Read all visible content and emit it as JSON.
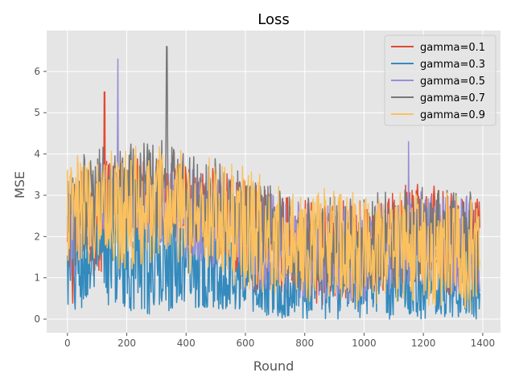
{
  "chart_data": {
    "type": "line",
    "title": "Loss",
    "xlabel": "Round",
    "ylabel": "MSE",
    "xlim": [
      -70,
      1460
    ],
    "ylim": [
      -0.33,
      6.99
    ],
    "xticks": [
      0,
      200,
      400,
      600,
      800,
      1000,
      1200,
      1400
    ],
    "yticks": [
      0,
      1,
      2,
      3,
      4,
      5,
      6
    ],
    "grid": true,
    "legend_position": "top-right",
    "x_start": 0,
    "x_end": 1390,
    "series": [
      {
        "name": "gamma=0.1",
        "color": "#e24a33",
        "points": [
          [
            0,
            1.4
          ],
          [
            50,
            2.7
          ],
          [
            100,
            2.3
          ],
          [
            125,
            5.5
          ],
          [
            150,
            2.9
          ],
          [
            200,
            2.8
          ],
          [
            250,
            3.3
          ],
          [
            300,
            2.9
          ],
          [
            350,
            2.9
          ],
          [
            400,
            2.7
          ],
          [
            450,
            2.6
          ],
          [
            500,
            2.4
          ],
          [
            550,
            2.2
          ],
          [
            600,
            2.0
          ],
          [
            650,
            1.9
          ],
          [
            700,
            1.9
          ],
          [
            750,
            1.7
          ],
          [
            800,
            1.7
          ],
          [
            850,
            1.6
          ],
          [
            900,
            1.6
          ],
          [
            950,
            1.6
          ],
          [
            1000,
            1.6
          ],
          [
            1050,
            1.7
          ],
          [
            1100,
            1.9
          ],
          [
            1150,
            2.0
          ],
          [
            1200,
            2.0
          ],
          [
            1250,
            2.0
          ],
          [
            1300,
            1.8
          ],
          [
            1350,
            1.8
          ],
          [
            1390,
            1.7
          ]
        ],
        "band": [
          [
            0,
            2.4
          ],
          [
            50,
            2.8
          ],
          [
            100,
            2.9
          ],
          [
            150,
            3.0
          ],
          [
            200,
            3.0
          ],
          [
            250,
            3.0
          ],
          [
            300,
            3.0
          ],
          [
            350,
            3.0
          ],
          [
            400,
            2.9
          ],
          [
            450,
            2.8
          ],
          [
            500,
            2.8
          ],
          [
            550,
            2.6
          ],
          [
            600,
            2.5
          ],
          [
            650,
            2.3
          ],
          [
            700,
            2.2
          ],
          [
            750,
            2.1
          ],
          [
            800,
            2.1
          ],
          [
            850,
            2.0
          ],
          [
            900,
            2.0
          ],
          [
            950,
            2.0
          ],
          [
            1000,
            2.0
          ],
          [
            1050,
            2.1
          ],
          [
            1100,
            2.3
          ],
          [
            1150,
            2.4
          ],
          [
            1200,
            2.4
          ],
          [
            1250,
            2.3
          ],
          [
            1300,
            2.2
          ],
          [
            1350,
            2.1
          ],
          [
            1390,
            2.1
          ]
        ]
      },
      {
        "name": "gamma=0.3",
        "color": "#348abd",
        "points": [
          [
            0,
            1.0
          ],
          [
            50,
            1.3
          ],
          [
            100,
            1.4
          ],
          [
            150,
            1.5
          ],
          [
            200,
            1.5
          ],
          [
            250,
            1.5
          ],
          [
            300,
            1.5
          ],
          [
            350,
            1.5
          ],
          [
            400,
            1.4
          ],
          [
            450,
            1.4
          ],
          [
            500,
            1.3
          ],
          [
            550,
            1.2
          ],
          [
            600,
            1.1
          ],
          [
            650,
            1.0
          ],
          [
            700,
            0.9
          ],
          [
            750,
            0.9
          ],
          [
            800,
            0.9
          ],
          [
            850,
            0.85
          ],
          [
            900,
            0.85
          ],
          [
            950,
            0.85
          ],
          [
            1000,
            0.9
          ],
          [
            1050,
            0.9
          ],
          [
            1100,
            0.9
          ],
          [
            1150,
            0.9
          ],
          [
            1200,
            0.9
          ],
          [
            1250,
            0.9
          ],
          [
            1300,
            0.9
          ],
          [
            1350,
            0.9
          ],
          [
            1390,
            0.9
          ]
        ],
        "band": [
          [
            0,
            1.5
          ],
          [
            50,
            1.6
          ],
          [
            100,
            1.5
          ],
          [
            150,
            1.8
          ],
          [
            200,
            1.9
          ],
          [
            250,
            2.1
          ],
          [
            300,
            2.0
          ],
          [
            350,
            1.9
          ],
          [
            400,
            1.7
          ],
          [
            450,
            1.6
          ],
          [
            500,
            1.5
          ],
          [
            550,
            1.3
          ],
          [
            600,
            1.2
          ],
          [
            650,
            1.1
          ],
          [
            700,
            1.0
          ],
          [
            750,
            1.0
          ],
          [
            800,
            1.0
          ],
          [
            850,
            0.95
          ],
          [
            900,
            0.95
          ],
          [
            950,
            0.95
          ],
          [
            1000,
            0.95
          ],
          [
            1050,
            0.95
          ],
          [
            1100,
            0.95
          ],
          [
            1150,
            1.0
          ],
          [
            1200,
            1.0
          ],
          [
            1250,
            1.0
          ],
          [
            1300,
            1.0
          ],
          [
            1350,
            1.0
          ],
          [
            1390,
            1.0
          ]
        ]
      },
      {
        "name": "gamma=0.5",
        "color": "#988ed5",
        "points": [
          [
            0,
            1.8
          ],
          [
            50,
            2.6
          ],
          [
            100,
            2.8
          ],
          [
            150,
            3.0
          ],
          [
            170,
            6.3
          ],
          [
            200,
            3.0
          ],
          [
            250,
            2.8
          ],
          [
            300,
            2.9
          ],
          [
            350,
            2.8
          ],
          [
            400,
            2.6
          ],
          [
            450,
            2.5
          ],
          [
            500,
            2.3
          ],
          [
            550,
            2.2
          ],
          [
            600,
            2.0
          ],
          [
            650,
            1.9
          ],
          [
            700,
            1.8
          ],
          [
            750,
            1.7
          ],
          [
            800,
            1.7
          ],
          [
            850,
            1.6
          ],
          [
            900,
            1.6
          ],
          [
            950,
            1.6
          ],
          [
            1000,
            1.6
          ],
          [
            1050,
            1.7
          ],
          [
            1100,
            1.8
          ],
          [
            1150,
            4.3
          ],
          [
            1200,
            1.9
          ],
          [
            1250,
            1.9
          ],
          [
            1300,
            1.8
          ],
          [
            1350,
            1.7
          ],
          [
            1390,
            1.7
          ]
        ],
        "band": [
          [
            0,
            2.2
          ],
          [
            50,
            2.7
          ],
          [
            100,
            2.9
          ],
          [
            150,
            3.0
          ],
          [
            200,
            3.0
          ],
          [
            250,
            3.0
          ],
          [
            300,
            3.0
          ],
          [
            350,
            3.0
          ],
          [
            400,
            2.9
          ],
          [
            450,
            2.8
          ],
          [
            500,
            2.7
          ],
          [
            550,
            2.5
          ],
          [
            600,
            2.4
          ],
          [
            650,
            2.2
          ],
          [
            700,
            2.1
          ],
          [
            750,
            2.0
          ],
          [
            800,
            2.0
          ],
          [
            850,
            1.9
          ],
          [
            900,
            1.9
          ],
          [
            950,
            1.9
          ],
          [
            1000,
            1.9
          ],
          [
            1050,
            2.0
          ],
          [
            1100,
            2.1
          ],
          [
            1150,
            2.2
          ],
          [
            1200,
            2.2
          ],
          [
            1250,
            2.2
          ],
          [
            1300,
            2.1
          ],
          [
            1350,
            2.1
          ],
          [
            1390,
            2.0
          ]
        ]
      },
      {
        "name": "gamma=0.7",
        "color": "#777777",
        "points": [
          [
            0,
            2.4
          ],
          [
            50,
            2.7
          ],
          [
            100,
            2.9
          ],
          [
            150,
            3.1
          ],
          [
            200,
            3.1
          ],
          [
            250,
            3.2
          ],
          [
            300,
            3.2
          ],
          [
            335,
            6.6
          ],
          [
            350,
            3.2
          ],
          [
            400,
            3.0
          ],
          [
            450,
            2.9
          ],
          [
            500,
            2.7
          ],
          [
            550,
            2.5
          ],
          [
            600,
            2.3
          ],
          [
            650,
            2.2
          ],
          [
            700,
            2.0
          ],
          [
            750,
            1.9
          ],
          [
            800,
            1.9
          ],
          [
            850,
            1.8
          ],
          [
            900,
            1.8
          ],
          [
            950,
            1.8
          ],
          [
            1000,
            1.8
          ],
          [
            1050,
            1.9
          ],
          [
            1100,
            1.9
          ],
          [
            1150,
            2.0
          ],
          [
            1200,
            2.0
          ],
          [
            1250,
            2.0
          ],
          [
            1300,
            1.9
          ],
          [
            1350,
            1.9
          ],
          [
            1390,
            1.8
          ]
        ],
        "band": [
          [
            0,
            2.9
          ],
          [
            50,
            3.1
          ],
          [
            100,
            3.3
          ],
          [
            150,
            3.4
          ],
          [
            200,
            3.5
          ],
          [
            250,
            3.6
          ],
          [
            300,
            3.6
          ],
          [
            350,
            3.5
          ],
          [
            400,
            3.3
          ],
          [
            450,
            3.2
          ],
          [
            500,
            3.0
          ],
          [
            550,
            2.8
          ],
          [
            600,
            2.6
          ],
          [
            650,
            2.4
          ],
          [
            700,
            2.3
          ],
          [
            750,
            2.2
          ],
          [
            800,
            2.2
          ],
          [
            850,
            2.1
          ],
          [
            900,
            2.1
          ],
          [
            950,
            2.1
          ],
          [
            1000,
            2.1
          ],
          [
            1050,
            2.2
          ],
          [
            1100,
            2.2
          ],
          [
            1150,
            2.3
          ],
          [
            1200,
            2.3
          ],
          [
            1250,
            2.3
          ],
          [
            1300,
            2.2
          ],
          [
            1350,
            2.2
          ],
          [
            1390,
            2.1
          ]
        ]
      },
      {
        "name": "gamma=0.9",
        "color": "#fbc15e",
        "points": [
          [
            0,
            2.5
          ],
          [
            50,
            2.6
          ],
          [
            100,
            2.8
          ],
          [
            150,
            2.7
          ],
          [
            200,
            2.7
          ],
          [
            250,
            2.7
          ],
          [
            300,
            2.7
          ],
          [
            350,
            2.6
          ],
          [
            400,
            2.6
          ],
          [
            450,
            2.5
          ],
          [
            500,
            2.5
          ],
          [
            550,
            2.3
          ],
          [
            600,
            2.2
          ],
          [
            650,
            2.1
          ],
          [
            700,
            2.0
          ],
          [
            750,
            1.9
          ],
          [
            800,
            1.8
          ],
          [
            850,
            1.8
          ],
          [
            900,
            1.7
          ],
          [
            950,
            1.7
          ],
          [
            1000,
            1.7
          ],
          [
            1050,
            1.7
          ],
          [
            1100,
            1.7
          ],
          [
            1150,
            1.7
          ],
          [
            1200,
            1.7
          ],
          [
            1250,
            1.7
          ],
          [
            1300,
            1.7
          ],
          [
            1350,
            1.6
          ],
          [
            1390,
            1.6
          ]
        ],
        "band": [
          [
            0,
            3.0
          ],
          [
            50,
            3.1
          ],
          [
            100,
            3.3
          ],
          [
            150,
            3.3
          ],
          [
            200,
            3.3
          ],
          [
            250,
            3.3
          ],
          [
            300,
            3.3
          ],
          [
            350,
            3.3
          ],
          [
            400,
            3.2
          ],
          [
            450,
            3.1
          ],
          [
            500,
            3.1
          ],
          [
            550,
            2.9
          ],
          [
            600,
            2.8
          ],
          [
            650,
            2.7
          ],
          [
            700,
            2.5
          ],
          [
            750,
            2.4
          ],
          [
            800,
            2.3
          ],
          [
            850,
            2.3
          ],
          [
            900,
            2.2
          ],
          [
            950,
            2.2
          ],
          [
            1000,
            2.2
          ],
          [
            1050,
            2.2
          ],
          [
            1100,
            2.2
          ],
          [
            1150,
            2.2
          ],
          [
            1200,
            2.2
          ],
          [
            1250,
            2.2
          ],
          [
            1300,
            2.2
          ],
          [
            1350,
            2.1
          ],
          [
            1390,
            2.1
          ]
        ]
      }
    ]
  }
}
